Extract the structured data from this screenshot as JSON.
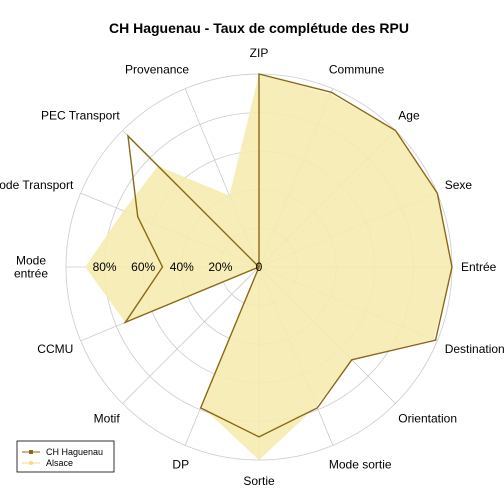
{
  "chart_data": {
    "type": "radar",
    "title": "CH Haguenau - Taux de complétude des RPU",
    "categories": [
      "ZIP",
      "Commune",
      "Age",
      "Sexe",
      "Entrée",
      "Destination",
      "Orientation",
      "Mode sortie",
      "Sortie",
      "DP",
      "Motif",
      "CCMU",
      "Mode\nentrée",
      "Mode Transport",
      "PEC Transport",
      "Provenance"
    ],
    "rlim": [
      0,
      100
    ],
    "ticks": [
      {
        "value": 0,
        "label": "0"
      },
      {
        "value": 20,
        "label": "20%"
      },
      {
        "value": 40,
        "label": "40%"
      },
      {
        "value": 60,
        "label": "60%"
      },
      {
        "value": 80,
        "label": "80%"
      }
    ],
    "grid": true,
    "legend_position": "bottom-left",
    "series": [
      {
        "name": "CH Haguenau",
        "color": "#8B6914",
        "fill": "none",
        "values": [
          100,
          98,
          100,
          100,
          100,
          99,
          68,
          79,
          88,
          79,
          0,
          75,
          50,
          68,
          96,
          0
        ]
      },
      {
        "name": "Alsace",
        "color": "#EEDC82",
        "fill": "#F5EBB0",
        "values": [
          100,
          97,
          100,
          100,
          100,
          98,
          68,
          78,
          100,
          78,
          0,
          75,
          90,
          76,
          74,
          40
        ]
      }
    ]
  }
}
